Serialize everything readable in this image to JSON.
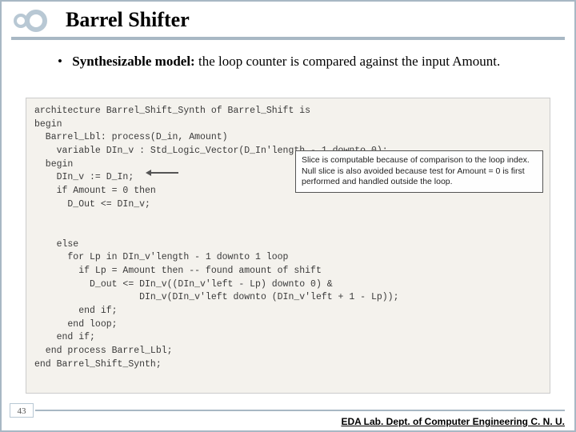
{
  "title": "Barrel Shifter",
  "bullet": {
    "lead": "Synthesizable model:",
    "rest": " the loop counter is compared against the input Amount."
  },
  "code": {
    "l1": "architecture Barrel_Shift_Synth of Barrel_Shift is",
    "l2": "begin",
    "l3": "  Barrel_Lbl: process(D_in, Amount)",
    "l4": "    variable DIn_v : Std_Logic_Vector(D_In'length - 1 downto 0);",
    "l5": "  begin",
    "l6": "    DIn_v := D_In;",
    "l7": "    if Amount = 0 then",
    "l8": "      D_Out <= DIn_v;",
    "l9": " ",
    "l10": " ",
    "l11": "    else",
    "l12": "      for Lp in DIn_v'length - 1 downto 1 loop",
    "l13": "        if Lp = Amount then -- found amount of shift",
    "l14": "          D_out <= DIn_v((DIn_v'left - Lp) downto 0) &",
    "l15": "                   DIn_v(DIn_v'left downto (DIn_v'left + 1 - Lp));",
    "l16": "        end if;",
    "l17": "      end loop;",
    "l18": "    end if;",
    "l19": "  end process Barrel_Lbl;",
    "l20": "end Barrel_Shift_Synth;"
  },
  "annotation": "Slice is computable because of comparison to the loop index. Null slice is also avoided because test for Amount = 0 is first performed and handled outside the loop.",
  "page": "43",
  "footer": "EDA Lab. Dept. of Computer Engineering C. N. U.",
  "colors": {
    "border": "#a8b8c4",
    "codebg": "#f4f2ed",
    "text": "#000000"
  }
}
